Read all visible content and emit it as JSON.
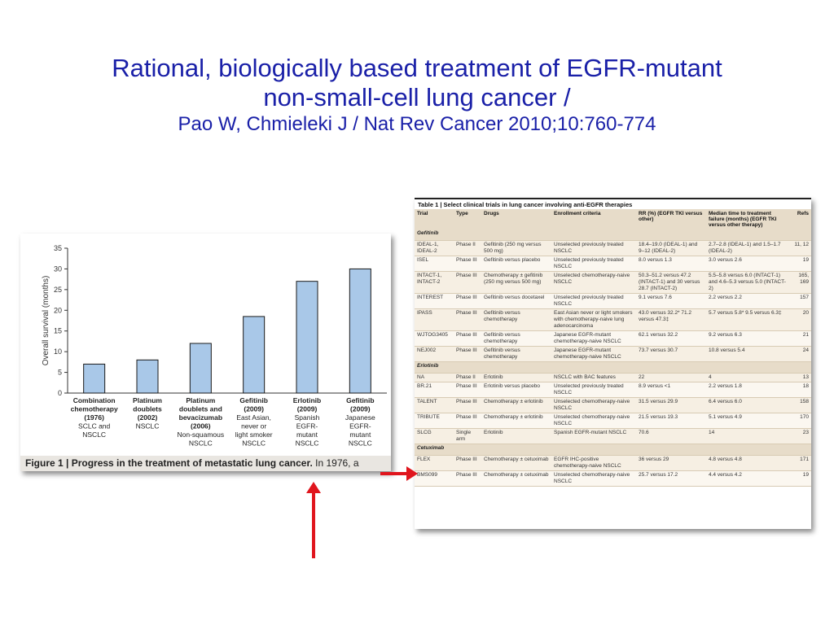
{
  "title": {
    "line1": "Rational, biologically based treatment of EGFR-mutant",
    "line2": "non-small-cell lung cancer /",
    "line3": "Pao W, Chmieleki J / Nat Rev Cancer 2010;10:760-774"
  },
  "figure1": {
    "caption_bold": "Figure 1 | Progress in the treatment of metastatic lung cancer.",
    "caption_rest": " In 1976, a",
    "bar_color": "#a9c8e8"
  },
  "chart_data": {
    "type": "bar",
    "ylabel": "Overall survival (months)",
    "ylim": [
      0,
      35
    ],
    "yticks": [
      "0",
      "5",
      "10",
      "15",
      "20",
      "25",
      "30",
      "35"
    ],
    "categories": [
      {
        "lines_bold": [
          "Combination",
          "chemotherapy",
          "(1976)"
        ],
        "lines": [
          "SCLC and",
          "NSCLC"
        ]
      },
      {
        "lines_bold": [
          "Platinum",
          "doublets",
          "(2002)"
        ],
        "lines": [
          "NSCLC"
        ]
      },
      {
        "lines_bold": [
          "Platinum",
          "doublets and",
          "bevacizumab",
          "(2006)"
        ],
        "lines": [
          "Non-squamous",
          "NSCLC"
        ]
      },
      {
        "lines_bold": [
          "Gefitinib",
          "(2009)"
        ],
        "lines": [
          "East Asian,",
          "never or",
          "light smoker",
          "NSCLC"
        ]
      },
      {
        "lines_bold": [
          "Erlotinib",
          "(2009)"
        ],
        "lines": [
          "Spanish",
          "EGFR-",
          "mutant",
          "NSCLC"
        ]
      },
      {
        "lines_bold": [
          "Gefitinib",
          "(2009)"
        ],
        "lines": [
          "Japanese",
          "EGFR-",
          "mutant",
          "NSCLC"
        ]
      }
    ],
    "values": [
      7,
      8,
      12,
      18.5,
      27,
      30
    ]
  },
  "table1": {
    "caption": "Table 1 | Select clinical trials in lung cancer involving anti-EGFR therapies",
    "headers": [
      "Trial",
      "Type",
      "Drugs",
      "Enrollment criteria",
      "RR (%) (EGFR TKI versus other)",
      "Median time to treatment failure (months) (EGFR TKI versus other therapy)",
      "Refs"
    ],
    "rows": [
      {
        "section": "Gefitinib"
      },
      {
        "cells": [
          "IDEAL-1, IDEAL-2",
          "Phase II",
          "Gefitinib (250 mg versus 500 mg)",
          "Unselected previously treated NSCLC",
          "18.4–19.0 (IDEAL-1) and 9–12 (IDEAL-2)",
          "2.7–2.8 (IDEAL-1) and 1.5–1.7 (IDEAL-2)",
          "11, 12"
        ]
      },
      {
        "cells": [
          "ISEL",
          "Phase III",
          "Gefitinib versus placebo",
          "Unselected previously treated NSCLC",
          "8.0 versus 1.3",
          "3.0 versus 2.6",
          "19"
        ]
      },
      {
        "cells": [
          "INTACT-1, INTACT-2",
          "Phase III",
          "Chemotherapy ± gefitinib (250 mg versus 500 mg)",
          "Unselected chemotherapy-naive NSCLC",
          "50.3–51.2 versus 47.2 (INTACT-1) and 30 versus 28.7 (INTACT-2)",
          "5.5–5.8 versus 6.0 (INTACT-1) and 4.6–5.3 versus 5.0 (INTACT-2)",
          "165, 169"
        ]
      },
      {
        "cells": [
          "INTEREST",
          "Phase III",
          "Gefitinib versus docetaxel",
          "Unselected previously treated NSCLC",
          "9.1 versus 7.6",
          "2.2 versus 2.2",
          "157"
        ]
      },
      {
        "cells": [
          "IPASS",
          "Phase III",
          "Gefitinib versus chemotherapy",
          "East Asian never or light smokers with chemotherapy-naive lung adenocarcinoma",
          "43.0 versus 32.2* 71.2 versus 47.3‡",
          "5.7 versus 5.8* 9.5 versus 6.3‡",
          "20"
        ]
      },
      {
        "cells": [
          "WJTOG3405",
          "Phase III",
          "Gefitinib versus chemotherapy",
          "Japanese EGFR-mutant chemotherapy-naive NSCLC",
          "62.1 versus 32.2",
          "9.2 versus 6.3",
          "21"
        ]
      },
      {
        "cells": [
          "NEJ002",
          "Phase III",
          "Gefitinib versus chemotherapy",
          "Japanese EGFR-mutant chemotherapy-naive NSCLC",
          "73.7 versus 30.7",
          "10.8 versus 5.4",
          "24"
        ]
      },
      {
        "section": "Erlotinib"
      },
      {
        "cells": [
          "NA",
          "Phase II",
          "Erlotinib",
          "NSCLC with BAC features",
          "22",
          "4",
          "13"
        ]
      },
      {
        "cells": [
          "BR.21",
          "Phase III",
          "Erlotinib versus placebo",
          "Unselected previously treated NSCLC",
          "8.9 versus <1",
          "2.2 versus 1.8",
          "18"
        ]
      },
      {
        "cells": [
          "TALENT",
          "Phase III",
          "Chemotherapy ± erlotinib",
          "Unselected chemotherapy-naive NSCLC",
          "31.5 versus 29.9",
          "6.4 versus 6.0",
          "158"
        ]
      },
      {
        "cells": [
          "TRIBUTE",
          "Phase III",
          "Chemotherapy ± erlotinib",
          "Unselected chemotherapy-naive NSCLC",
          "21.5 versus 19.3",
          "5.1 versus 4.9",
          "170"
        ]
      },
      {
        "cells": [
          "SLCG",
          "Single arm",
          "Erlotinib",
          "Spanish EGFR-mutant NSCLC",
          "70.6",
          "14",
          "23"
        ]
      },
      {
        "section": "Cetuximab"
      },
      {
        "cells": [
          "FLEX",
          "Phase III",
          "Chemotherapy ± cetuximab",
          "EGFR IHC-positive chemotherapy-naive NSCLC",
          "36 versus 29",
          "4.8 versus 4.8",
          "171"
        ]
      },
      {
        "cells": [
          "BMS099",
          "Phase III",
          "Chemotherapy ± cetuximab",
          "Unselected chemotherapy-naive NSCLC",
          "25.7 versus 17.2",
          "4.4 versus 4.2",
          "19"
        ]
      }
    ]
  },
  "arrows": {
    "color": "#e0151d"
  }
}
